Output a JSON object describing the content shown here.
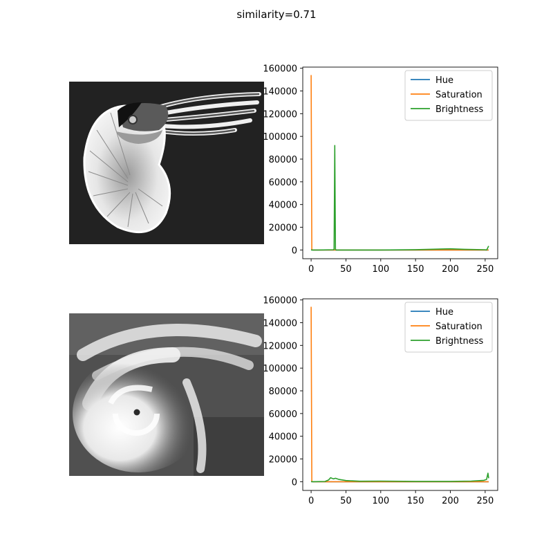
{
  "figure": {
    "title": "similarity=0.71"
  },
  "images": [
    {
      "subject": "nautilus"
    },
    {
      "subject": "hurricane"
    }
  ],
  "colors": {
    "Hue": "#1f77b4",
    "Saturation": "#ff7f0e",
    "Brightness": "#2ca02c"
  },
  "chart_data": [
    {
      "type": "line",
      "title": "",
      "xlabel": "",
      "ylabel": "",
      "xlim": [
        -12,
        268
      ],
      "ylim": [
        -7700,
        161000
      ],
      "xticks": [
        0,
        50,
        100,
        150,
        200,
        250
      ],
      "yticks": [
        0,
        20000,
        40000,
        60000,
        80000,
        100000,
        120000,
        140000,
        160000
      ],
      "legend": "top-right",
      "series": [
        {
          "name": "Hue",
          "points": [
            [
              0,
              500
            ],
            [
              2,
              0
            ],
            [
              255,
              0
            ]
          ]
        },
        {
          "name": "Saturation",
          "points": [
            [
              0,
              154000
            ],
            [
              1,
              200
            ],
            [
              3,
              0
            ],
            [
              255,
              0
            ]
          ]
        },
        {
          "name": "Brightness",
          "points": [
            [
              0,
              0
            ],
            [
              10,
              0
            ],
            [
              32,
              200
            ],
            [
              33,
              500
            ],
            [
              34,
              92000
            ],
            [
              35,
              500
            ],
            [
              36,
              0
            ],
            [
              100,
              0
            ],
            [
              150,
              300
            ],
            [
              180,
              700
            ],
            [
              200,
              1000
            ],
            [
              220,
              600
            ],
            [
              250,
              200
            ],
            [
              252,
              0
            ],
            [
              253,
              1000
            ],
            [
              255,
              3500
            ]
          ]
        }
      ]
    },
    {
      "type": "line",
      "title": "",
      "xlabel": "",
      "ylabel": "",
      "xlim": [
        -12,
        268
      ],
      "ylim": [
        -7700,
        161000
      ],
      "xticks": [
        0,
        50,
        100,
        150,
        200,
        250
      ],
      "yticks": [
        0,
        20000,
        40000,
        60000,
        80000,
        100000,
        120000,
        140000,
        160000
      ],
      "legend": "top-right",
      "series": [
        {
          "name": "Hue",
          "points": [
            [
              0,
              500
            ],
            [
              2,
              0
            ],
            [
              255,
              0
            ]
          ]
        },
        {
          "name": "Saturation",
          "points": [
            [
              0,
              154000
            ],
            [
              1,
              200
            ],
            [
              3,
              0
            ],
            [
              255,
              0
            ]
          ]
        },
        {
          "name": "Brightness",
          "points": [
            [
              0,
              0
            ],
            [
              20,
              200
            ],
            [
              25,
              1500
            ],
            [
              28,
              3500
            ],
            [
              32,
              2500
            ],
            [
              35,
              3000
            ],
            [
              40,
              2000
            ],
            [
              50,
              1000
            ],
            [
              70,
              400
            ],
            [
              100,
              500
            ],
            [
              150,
              300
            ],
            [
              200,
              300
            ],
            [
              230,
              500
            ],
            [
              248,
              1200
            ],
            [
              252,
              2000
            ],
            [
              254,
              7500
            ],
            [
              255,
              3000
            ]
          ]
        }
      ]
    }
  ]
}
